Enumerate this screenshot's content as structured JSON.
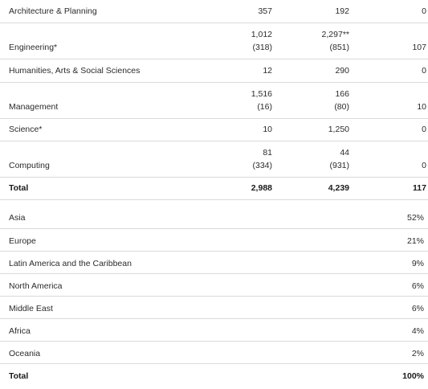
{
  "faculty_table": {
    "rows": [
      {
        "label": "Architecture & Planning",
        "c1_top": "",
        "c1": "357",
        "c2_top": "",
        "c2": "192",
        "c3": "0"
      },
      {
        "label": "Engineering*",
        "c1_top": "1,012",
        "c1": "(318)",
        "c2_top": "2,297**",
        "c2": "(851)",
        "c3": "107"
      },
      {
        "label": "Humanities, Arts & Social Sciences",
        "c1_top": "",
        "c1": "12",
        "c2_top": "",
        "c2": "290",
        "c3": "0"
      },
      {
        "label": "Management",
        "c1_top": "1,516",
        "c1": "(16)",
        "c2_top": "166",
        "c2": "(80)",
        "c3": "10"
      },
      {
        "label": "Science*",
        "c1_top": "",
        "c1": "10",
        "c2_top": "",
        "c2": "1,250",
        "c3": "0"
      },
      {
        "label": "Computing",
        "c1_top": "81",
        "c1": "(334)",
        "c2_top": "44",
        "c2": "(931)",
        "c3": "0"
      }
    ],
    "total": {
      "label": "Total",
      "c1": "2,988",
      "c2": "4,239",
      "c3": "117"
    }
  },
  "region_table": {
    "rows": [
      {
        "label": "Asia",
        "pct": "52%"
      },
      {
        "label": "Europe",
        "pct": "21%"
      },
      {
        "label": "Latin America and the Caribbean",
        "pct": "9%"
      },
      {
        "label": "North America",
        "pct": "6%"
      },
      {
        "label": "Middle East",
        "pct": "6%"
      },
      {
        "label": "Africa",
        "pct": "4%"
      },
      {
        "label": "Oceania",
        "pct": "2%"
      }
    ],
    "total": {
      "label": "Total",
      "pct": "100%"
    }
  }
}
